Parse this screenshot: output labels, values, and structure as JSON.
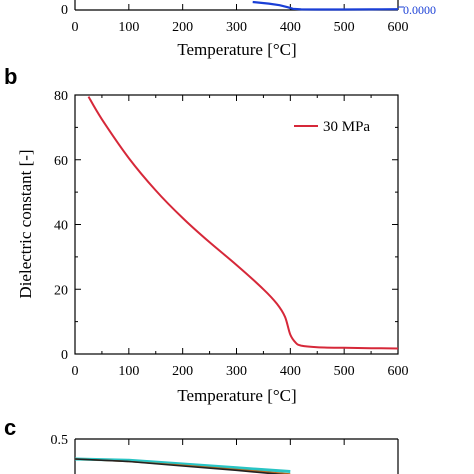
{
  "panel_a": {
    "xlabel": "Temperature [°C]",
    "y_zero_label": "0",
    "right_label": "0.0000",
    "colors": {
      "curve": "#1a3fd6",
      "right_axis_text": "#1a3fd6"
    }
  },
  "panel_b": {
    "label": "b",
    "legend": "30 MPa",
    "colors": {
      "curve": "#d62839"
    }
  },
  "panel_c": {
    "label": "c",
    "y_top_label": "0.5",
    "colors": {
      "cyan": "#29c4c4",
      "black": "#222222",
      "orange": "#b5651d"
    }
  },
  "chart_data": [
    {
      "type": "line",
      "panel": "a",
      "title": "",
      "xlabel": "Temperature [°C]",
      "xlim": [
        0,
        600
      ],
      "x_ticks": [
        0,
        100,
        200,
        300,
        400,
        500,
        600
      ],
      "y_ticks_visible": [
        "0"
      ],
      "right_axis_ticks_visible": [
        "0.0000"
      ],
      "series": [
        {
          "x": [
            330,
            360,
            380,
            395,
            405,
            420,
            450,
            500,
            550,
            600
          ],
          "y": [
            0.2,
            0.16,
            0.12,
            0.07,
            0.03,
            0.015,
            0.012,
            0.012,
            0.015,
            0.02
          ]
        }
      ]
    },
    {
      "type": "line",
      "panel": "b",
      "title": "",
      "xlabel": "Temperature [°C]",
      "ylabel": "Dielectric constant [-]",
      "xlim": [
        0,
        600
      ],
      "ylim": [
        0,
        80
      ],
      "x_ticks": [
        0,
        100,
        200,
        300,
        400,
        500,
        600
      ],
      "y_ticks": [
        0,
        20,
        40,
        60,
        80
      ],
      "legend_position": "top-right",
      "series": [
        {
          "name": "30 MPa",
          "x": [
            25,
            50,
            100,
            150,
            200,
            250,
            300,
            350,
            375,
            390,
            400,
            410,
            420,
            450,
            500,
            550,
            600
          ],
          "y": [
            79.5,
            72.5,
            60.5,
            50.5,
            42.0,
            34.5,
            27.5,
            20.0,
            15.5,
            11.5,
            6.0,
            3.5,
            2.6,
            2.1,
            1.9,
            1.8,
            1.7
          ]
        }
      ]
    },
    {
      "type": "line",
      "panel": "c",
      "title": "",
      "xlim": [
        0,
        600
      ],
      "y_ticks_visible": [
        "0.5"
      ],
      "series": [
        {
          "x": [
            0,
            100,
            200,
            300,
            400
          ],
          "y": [
            0.42,
            0.415,
            0.4,
            0.385,
            0.37
          ]
        },
        {
          "x": [
            0,
            100,
            200,
            300,
            400
          ],
          "y": [
            0.42,
            0.41,
            0.395,
            0.378,
            0.36
          ]
        },
        {
          "x": [
            0,
            100,
            200,
            300,
            400
          ],
          "y": [
            0.42,
            0.41,
            0.392,
            0.375,
            0.355
          ]
        }
      ]
    }
  ]
}
